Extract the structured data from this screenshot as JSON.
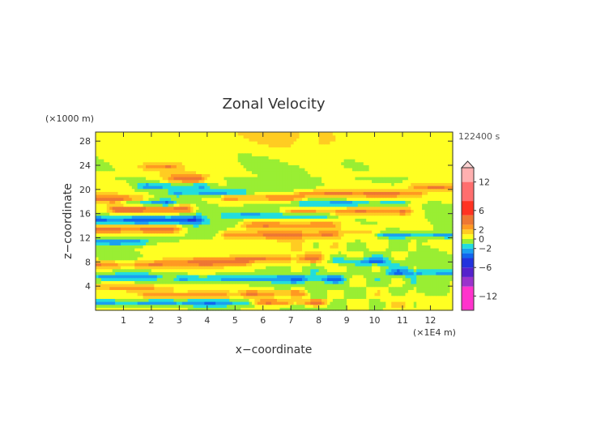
{
  "chart_data": {
    "type": "heatmap",
    "title": "Zonal Velocity",
    "xlabel": "x−coordinate",
    "ylabel": "z−coordinate",
    "x_unit": "(×1E4 m)",
    "y_unit": "(×1000 m)",
    "time_label": "122400 s",
    "xlim": [
      0,
      12.8
    ],
    "ylim": [
      0,
      29.5
    ],
    "x_ticks": [
      1,
      2,
      3,
      4,
      5,
      6,
      7,
      8,
      9,
      10,
      11,
      12
    ],
    "y_ticks": [
      4,
      8,
      12,
      16,
      20,
      24,
      28
    ],
    "grid": false,
    "colorbar": {
      "min": -15,
      "max": 15,
      "tick_values": [
        12,
        6,
        2,
        0,
        -2,
        -6,
        -12
      ],
      "tick_labels": [
        "12",
        "6",
        "2",
        "0",
        "−2",
        "−6",
        "−12"
      ],
      "levels": [
        {
          "from": -15,
          "to": -10,
          "color": "#ff33cc"
        },
        {
          "from": -10,
          "to": -8,
          "color": "#9a33cc"
        },
        {
          "from": -8,
          "to": -6,
          "color": "#5522cc"
        },
        {
          "from": -6,
          "to": -4,
          "color": "#2233dd"
        },
        {
          "from": -4,
          "to": -3,
          "color": "#1166ee"
        },
        {
          "from": -3,
          "to": -2,
          "color": "#1aa0f0"
        },
        {
          "from": -2,
          "to": -1,
          "color": "#22dddd"
        },
        {
          "from": -1,
          "to": 0,
          "color": "#99ee33"
        },
        {
          "from": 0,
          "to": 1,
          "color": "#ffff22"
        },
        {
          "from": 1,
          "to": 2,
          "color": "#ffcc22"
        },
        {
          "from": 2,
          "to": 3,
          "color": "#ff9922"
        },
        {
          "from": 3,
          "to": 5,
          "color": "#ee7733"
        },
        {
          "from": 5,
          "to": 8,
          "color": "#ff3322"
        },
        {
          "from": 8,
          "to": 12,
          "color": "#ff6e6e"
        },
        {
          "from": 12,
          "to": 15,
          "color": "#ffb0b0"
        }
      ]
    },
    "bands": [
      {
        "z": 1.3,
        "amp": -3.2,
        "width": 0.6,
        "x0": 0.0,
        "x1": 5.5
      },
      {
        "z": 1.4,
        "amp": 3.4,
        "width": 0.5,
        "x0": 5.8,
        "x1": 8.0
      },
      {
        "z": 2.6,
        "amp": 2.8,
        "width": 0.6,
        "x0": 2.0,
        "x1": 4.5
      },
      {
        "z": 2.8,
        "amp": 3.0,
        "width": 0.6,
        "x0": 5.5,
        "x1": 7.3
      },
      {
        "z": 3.8,
        "amp": 2.6,
        "width": 0.5,
        "x0": 0.0,
        "x1": 2.5
      },
      {
        "z": 5.3,
        "amp": -2.8,
        "width": 0.6,
        "x0": 3.2,
        "x1": 8.6
      },
      {
        "z": 5.6,
        "amp": -2.4,
        "width": 0.5,
        "x0": 0.0,
        "x1": 2.0
      },
      {
        "z": 6.3,
        "amp": -2.2,
        "width": 0.5,
        "x0": 10.8,
        "x1": 12.8
      },
      {
        "z": 7.6,
        "amp": 3.4,
        "width": 0.7,
        "x0": 0.0,
        "x1": 2.2
      },
      {
        "z": 8.0,
        "amp": 3.6,
        "width": 0.8,
        "x0": 2.8,
        "x1": 5.2
      },
      {
        "z": 8.2,
        "amp": -2.6,
        "width": 0.5,
        "x0": 8.8,
        "x1": 10.2
      },
      {
        "z": 8.6,
        "amp": 3.0,
        "width": 0.6,
        "x0": 5.2,
        "x1": 7.8
      },
      {
        "z": 11.4,
        "amp": -3.0,
        "width": 0.5,
        "x0": 0.0,
        "x1": 1.6
      },
      {
        "z": 12.6,
        "amp": 3.4,
        "width": 0.7,
        "x0": 4.8,
        "x1": 9.8
      },
      {
        "z": 12.5,
        "amp": -2.6,
        "width": 0.5,
        "x0": 9.0,
        "x1": 12.6
      },
      {
        "z": 13.5,
        "amp": 4.2,
        "width": 0.7,
        "x0": 0.0,
        "x1": 2.8
      },
      {
        "z": 14.2,
        "amp": 3.0,
        "width": 0.6,
        "x0": 5.5,
        "x1": 8.5
      },
      {
        "z": 15.0,
        "amp": -3.8,
        "width": 0.7,
        "x0": 0.0,
        "x1": 3.5
      },
      {
        "z": 15.8,
        "amp": -2.4,
        "width": 0.5,
        "x0": 4.8,
        "x1": 8.2
      },
      {
        "z": 16.8,
        "amp": 4.4,
        "width": 0.7,
        "x0": 0.8,
        "x1": 3.2
      },
      {
        "z": 16.4,
        "amp": 3.0,
        "width": 0.6,
        "x0": 7.0,
        "x1": 11.0
      },
      {
        "z": 17.8,
        "amp": -3.4,
        "width": 0.6,
        "x0": 1.3,
        "x1": 2.5
      },
      {
        "z": 17.8,
        "amp": -2.6,
        "width": 0.5,
        "x0": 7.5,
        "x1": 10.8
      },
      {
        "z": 18.5,
        "amp": 3.2,
        "width": 0.6,
        "x0": 0.0,
        "x1": 1.5
      },
      {
        "z": 18.7,
        "amp": 3.0,
        "width": 0.6,
        "x0": 4.8,
        "x1": 7.2
      },
      {
        "z": 19.5,
        "amp": -3.0,
        "width": 0.6,
        "x0": 3.0,
        "x1": 5.2
      },
      {
        "z": 19.4,
        "amp": 3.2,
        "width": 0.6,
        "x0": 7.5,
        "x1": 11.5
      },
      {
        "z": 20.6,
        "amp": -2.6,
        "width": 0.6,
        "x0": 1.8,
        "x1": 3.8
      },
      {
        "z": 20.5,
        "amp": 2.8,
        "width": 0.5,
        "x0": 11.5,
        "x1": 12.8
      },
      {
        "z": 21.8,
        "amp": 3.6,
        "width": 0.6,
        "x0": 2.8,
        "x1": 3.6
      },
      {
        "z": 23.8,
        "amp": 2.4,
        "width": 0.5,
        "x0": 2.0,
        "x1": 2.6
      }
    ]
  }
}
